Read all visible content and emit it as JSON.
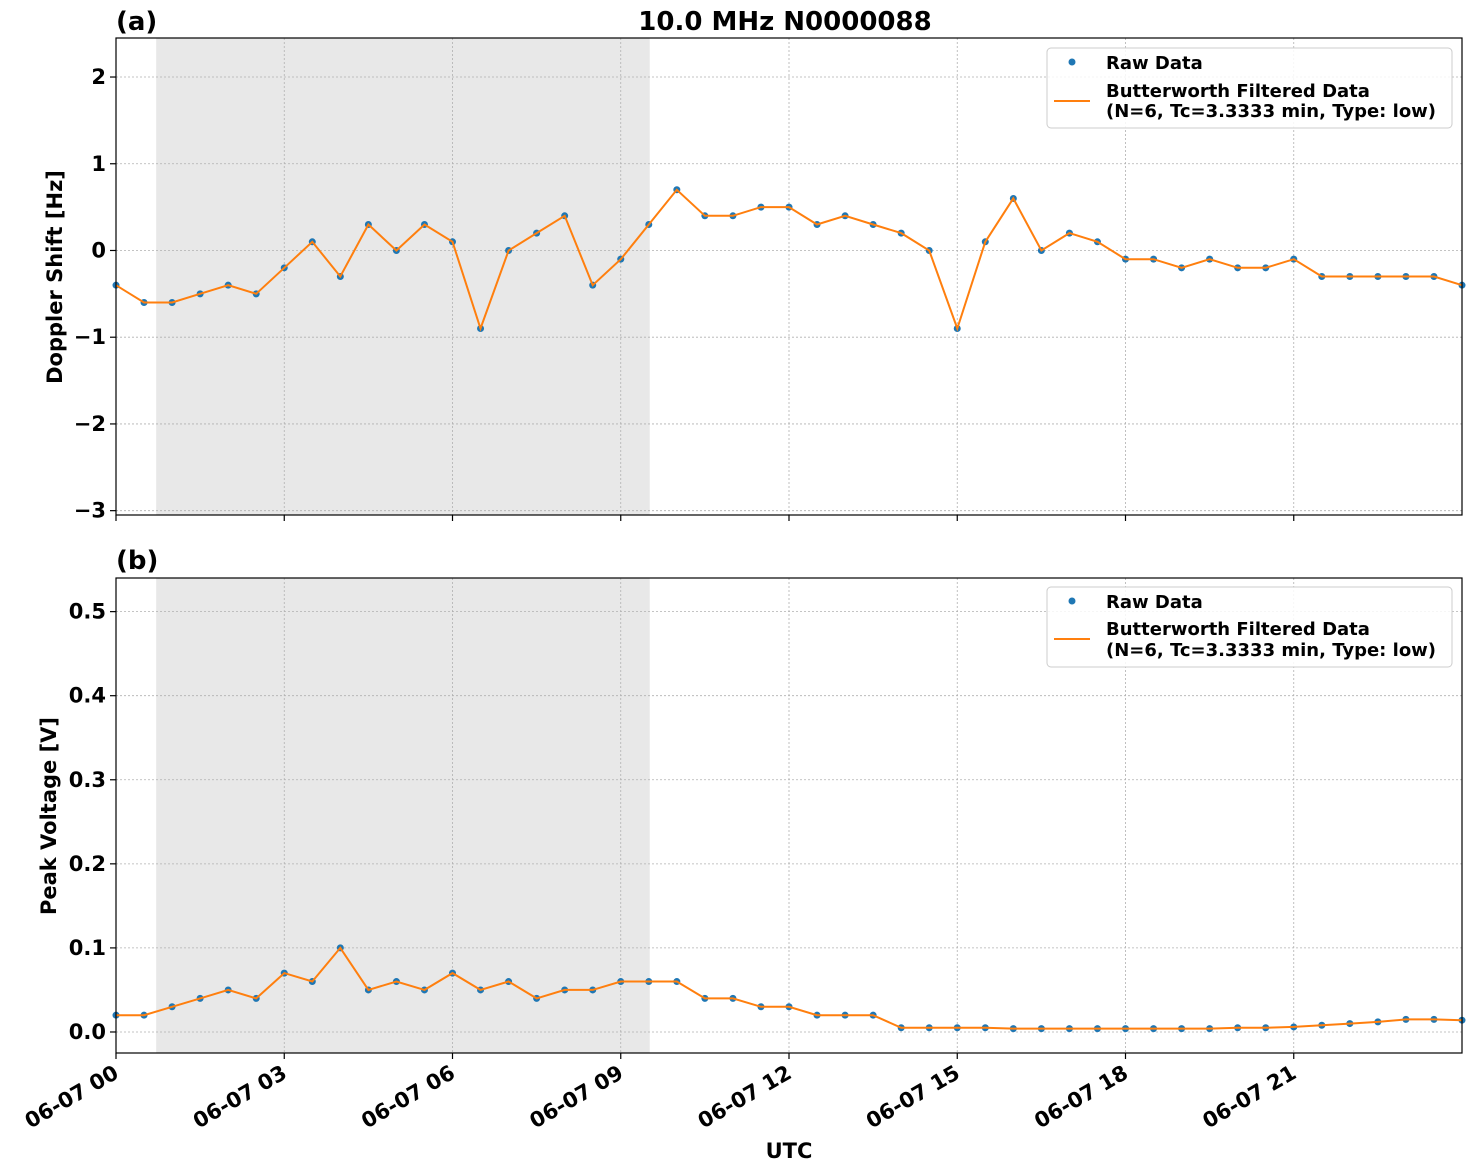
{
  "figure": {
    "title": "10.0 MHz N0000088",
    "xlabel": "UTC"
  },
  "legend": {
    "raw_label": "Raw Data",
    "filtered_line1": "Butterworth Filtered Data",
    "filtered_line2": "(N=6, Tc=3.3333 min, Type: low)"
  },
  "colors": {
    "raw": "#1f77b4",
    "filtered": "#ff7f0e",
    "shade": "#e8e8e8",
    "grid": "#b0b0b0"
  },
  "chart_data": [
    {
      "type": "scatter",
      "panel_label": "(a)",
      "ylabel": "Doppler Shift [Hz]",
      "grid": true,
      "legend_position": "top-right",
      "xlim": [
        "06-07 00:00",
        "06-07 24:00"
      ],
      "ylim": [
        -3.05,
        2.45
      ],
      "yticks": [
        "2",
        "1",
        "0",
        "−1",
        "−2",
        "−3"
      ],
      "ytick_values": [
        2,
        1,
        0,
        -1,
        -2,
        -3
      ],
      "shaded_interval": [
        "06-07 00:43",
        "06-07 09:31"
      ],
      "series": [
        {
          "name": "Raw Data",
          "x_hours": [
            0.0,
            0.5,
            1.0,
            1.5,
            2.0,
            2.5,
            3.0,
            3.5,
            4.0,
            4.5,
            5.0,
            5.5,
            6.0,
            6.5,
            7.0,
            7.5,
            8.0,
            8.5,
            9.0,
            9.5,
            10.0,
            10.5,
            11.0,
            11.5,
            12.0,
            12.5,
            13.0,
            13.5,
            14.0,
            14.5,
            15.0,
            15.5,
            16.0,
            16.5,
            17.0,
            17.5,
            18.0,
            18.5,
            19.0,
            19.5,
            20.0,
            20.5,
            21.0,
            21.5,
            22.0,
            22.5,
            23.0,
            23.5,
            24.0
          ],
          "y": [
            -0.4,
            -0.6,
            -0.6,
            -0.5,
            -0.4,
            -0.5,
            -0.2,
            0.1,
            -0.3,
            0.3,
            0.0,
            0.3,
            0.1,
            -0.9,
            0.0,
            0.2,
            0.4,
            -0.4,
            -0.1,
            0.3,
            0.7,
            0.4,
            0.4,
            0.5,
            0.5,
            0.3,
            0.4,
            0.3,
            0.2,
            0.0,
            -0.9,
            0.1,
            0.6,
            0.0,
            0.2,
            0.1,
            -0.1,
            -0.1,
            -0.2,
            -0.1,
            -0.2,
            -0.2,
            -0.1,
            -0.3,
            -0.3,
            -0.3,
            -0.3,
            -0.3,
            -0.4
          ]
        },
        {
          "name": "Butterworth Filtered Data (N=6, Tc=3.3333 min, Type: low)",
          "x_hours": [
            0.0,
            0.5,
            1.0,
            1.5,
            2.0,
            2.5,
            3.0,
            3.5,
            4.0,
            4.5,
            5.0,
            5.5,
            6.0,
            6.5,
            7.0,
            7.5,
            8.0,
            8.5,
            9.0,
            9.5,
            10.0,
            10.5,
            11.0,
            11.5,
            12.0,
            12.5,
            13.0,
            13.5,
            14.0,
            14.5,
            15.0,
            15.5,
            16.0,
            16.5,
            17.0,
            17.5,
            18.0,
            18.5,
            19.0,
            19.5,
            20.0,
            20.5,
            21.0,
            21.5,
            22.0,
            22.5,
            23.0,
            23.5,
            24.0
          ],
          "y": [
            -0.4,
            -0.6,
            -0.6,
            -0.5,
            -0.4,
            -0.5,
            -0.2,
            0.1,
            -0.3,
            0.3,
            0.0,
            0.3,
            0.1,
            -0.9,
            0.0,
            0.2,
            0.4,
            -0.4,
            -0.1,
            0.3,
            0.7,
            0.4,
            0.4,
            0.5,
            0.5,
            0.3,
            0.4,
            0.3,
            0.2,
            0.0,
            -0.9,
            0.1,
            0.6,
            0.0,
            0.2,
            0.1,
            -0.1,
            -0.1,
            -0.2,
            -0.1,
            -0.2,
            -0.2,
            -0.1,
            -0.3,
            -0.3,
            -0.3,
            -0.3,
            -0.3,
            -0.4
          ]
        }
      ]
    },
    {
      "type": "scatter",
      "panel_label": "(b)",
      "ylabel": "Peak Voltage [V]",
      "grid": true,
      "legend_position": "top-right",
      "xlim": [
        "06-07 00:00",
        "06-07 24:00"
      ],
      "ylim": [
        -0.025,
        0.54
      ],
      "yticks": [
        "0.5",
        "0.4",
        "0.3",
        "0.2",
        "0.1",
        "0.0"
      ],
      "ytick_values": [
        0.5,
        0.4,
        0.3,
        0.2,
        0.1,
        0.0
      ],
      "shaded_interval": [
        "06-07 00:43",
        "06-07 09:31"
      ],
      "series": [
        {
          "name": "Raw Data",
          "x_hours": [
            0.0,
            0.5,
            1.0,
            1.5,
            2.0,
            2.5,
            3.0,
            3.5,
            4.0,
            4.5,
            5.0,
            5.5,
            6.0,
            6.5,
            7.0,
            7.5,
            8.0,
            8.5,
            9.0,
            9.5,
            10.0,
            10.5,
            11.0,
            11.5,
            12.0,
            12.5,
            13.0,
            13.5,
            14.0,
            14.5,
            15.0,
            15.5,
            16.0,
            16.5,
            17.0,
            17.5,
            18.0,
            18.5,
            19.0,
            19.5,
            20.0,
            20.5,
            21.0,
            21.5,
            22.0,
            22.5,
            23.0,
            23.5,
            24.0
          ],
          "y": [
            0.02,
            0.02,
            0.03,
            0.04,
            0.05,
            0.04,
            0.07,
            0.06,
            0.1,
            0.05,
            0.06,
            0.05,
            0.07,
            0.05,
            0.06,
            0.04,
            0.05,
            0.05,
            0.06,
            0.06,
            0.06,
            0.04,
            0.04,
            0.03,
            0.03,
            0.02,
            0.02,
            0.02,
            0.005,
            0.005,
            0.005,
            0.005,
            0.004,
            0.004,
            0.004,
            0.004,
            0.004,
            0.004,
            0.004,
            0.004,
            0.005,
            0.005,
            0.006,
            0.008,
            0.01,
            0.012,
            0.015,
            0.015,
            0.014
          ]
        },
        {
          "name": "Butterworth Filtered Data (N=6, Tc=3.3333 min, Type: low)",
          "x_hours": [
            0.0,
            0.5,
            1.0,
            1.5,
            2.0,
            2.5,
            3.0,
            3.5,
            4.0,
            4.5,
            5.0,
            5.5,
            6.0,
            6.5,
            7.0,
            7.5,
            8.0,
            8.5,
            9.0,
            9.5,
            10.0,
            10.5,
            11.0,
            11.5,
            12.0,
            12.5,
            13.0,
            13.5,
            14.0,
            14.5,
            15.0,
            15.5,
            16.0,
            16.5,
            17.0,
            17.5,
            18.0,
            18.5,
            19.0,
            19.5,
            20.0,
            20.5,
            21.0,
            21.5,
            22.0,
            22.5,
            23.0,
            23.5,
            24.0
          ],
          "y": [
            0.02,
            0.02,
            0.03,
            0.04,
            0.05,
            0.04,
            0.07,
            0.06,
            0.1,
            0.05,
            0.06,
            0.05,
            0.07,
            0.05,
            0.06,
            0.04,
            0.05,
            0.05,
            0.06,
            0.06,
            0.06,
            0.04,
            0.04,
            0.03,
            0.03,
            0.02,
            0.02,
            0.02,
            0.005,
            0.005,
            0.005,
            0.005,
            0.004,
            0.004,
            0.004,
            0.004,
            0.004,
            0.004,
            0.004,
            0.004,
            0.005,
            0.005,
            0.006,
            0.008,
            0.01,
            0.012,
            0.015,
            0.015,
            0.014
          ]
        }
      ]
    }
  ],
  "x_axis": {
    "tick_hours": [
      0,
      3,
      6,
      9,
      12,
      15,
      18,
      21
    ],
    "tick_labels": [
      "06-07 00",
      "06-07 03",
      "06-07 06",
      "06-07 09",
      "06-07 12",
      "06-07 15",
      "06-07 18",
      "06-07 21"
    ]
  }
}
